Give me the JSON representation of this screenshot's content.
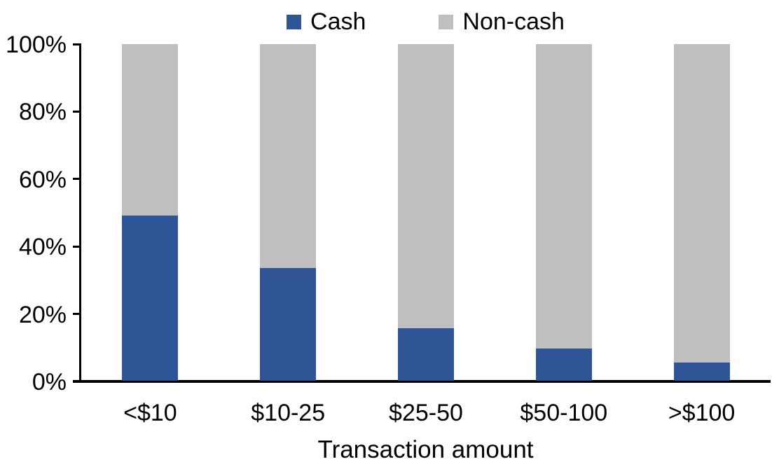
{
  "chart_data": {
    "type": "bar",
    "variant": "stacked-100-percent",
    "title": "",
    "xlabel": "Transaction amount",
    "ylabel": "",
    "categories": [
      "<$10",
      "$10-25",
      "$25-50",
      "$50-100",
      ">$100"
    ],
    "series": [
      {
        "name": "Cash",
        "color": "#2F5597",
        "values": [
          49,
          33.5,
          15.5,
          9.5,
          5.5
        ]
      },
      {
        "name": "Non-cash",
        "color": "#BFBFBF",
        "values": [
          51,
          66.5,
          84.5,
          90.5,
          94.5
        ]
      }
    ],
    "ylim": [
      0,
      100
    ],
    "ytick_values": [
      0,
      20,
      40,
      60,
      80,
      100
    ],
    "ytick_labels": [
      "0%",
      "20%",
      "40%",
      "60%",
      "80%",
      "100%"
    ],
    "grid": false,
    "legend_position": "top-center",
    "axis_color": "#000000",
    "background_color": "#FFFFFF"
  }
}
